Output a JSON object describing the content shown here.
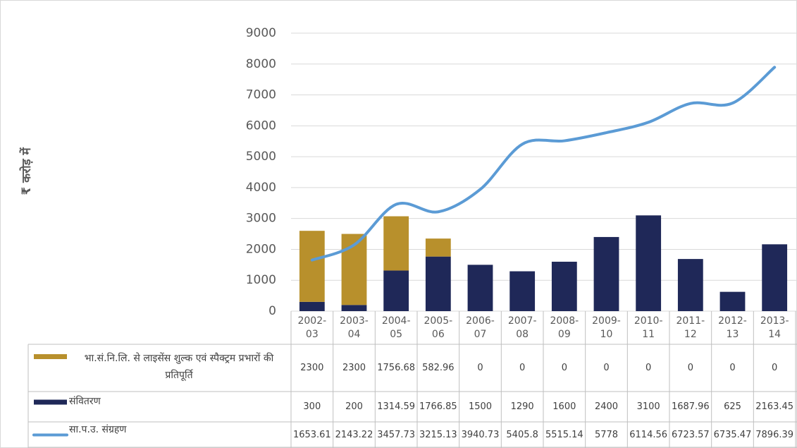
{
  "chart_data": {
    "type": "bar",
    "y_axis_label": "₹ करोड़ में",
    "categories": [
      "2002-03",
      "2003-04",
      "2004-05",
      "2005-06",
      "2006-07",
      "2007-08",
      "2008-09",
      "2009-10",
      "2010-11",
      "2011-12",
      "2012-13",
      "2013-14"
    ],
    "series": [
      {
        "name": "भा.सं.नि.लि. से लाइसेंस शुल्क एवं स्पैक्ट्रम प्रभारों की प्रतिपूर्ति",
        "color": "#b8902c",
        "stack": true,
        "values": [
          2300,
          2300,
          1756.68,
          582.96,
          0,
          0,
          0,
          0,
          0,
          0,
          0,
          0
        ]
      },
      {
        "name": "संवितरण",
        "color": "#1f2858",
        "stack": true,
        "values": [
          300,
          200,
          1314.59,
          1766.85,
          1500,
          1290,
          1600,
          2400,
          3100,
          1687.96,
          625,
          2163.45
        ]
      },
      {
        "name": "सा.प.उ. संग्रहण",
        "color": "#5b9bd5",
        "type": "line",
        "values": [
          1653.61,
          2143.22,
          3457.73,
          3215.13,
          3940.73,
          5405.8,
          5515.14,
          5778,
          6114.56,
          6723.57,
          6735.47,
          7896.39
        ]
      }
    ],
    "ylim": [
      0,
      9000
    ],
    "yticks": [
      0,
      1000,
      2000,
      3000,
      4000,
      5000,
      6000,
      7000,
      8000,
      9000
    ],
    "grid": true
  }
}
